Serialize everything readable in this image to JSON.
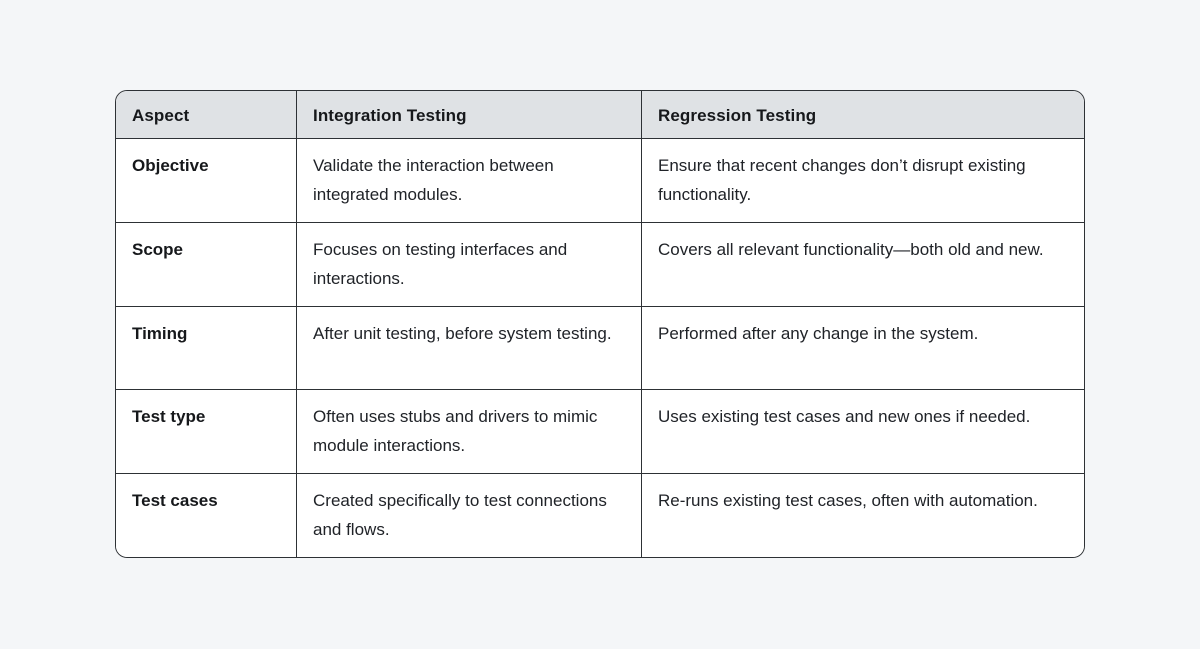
{
  "page": {
    "background_color": "#f4f6f8"
  },
  "colors": {
    "header_background": "#dfe2e5",
    "cell_background": "#ffffff",
    "border": "#2d3135",
    "header_text": "#16181b",
    "body_text": "#202328"
  },
  "table": {
    "columns": [
      "Aspect",
      "Integration Testing",
      "Regression Testing"
    ],
    "rows": [
      {
        "aspect": "Objective",
        "integration": "Validate the interaction between integrated modules.",
        "regression": "Ensure that recent changes don’t disrupt existing functionality."
      },
      {
        "aspect": "Scope",
        "integration": "Focuses on testing interfaces and interactions.",
        "regression": "Covers all relevant functionality—both old and new."
      },
      {
        "aspect": "Timing",
        "integration": "After unit testing, before system testing.",
        "regression": "Performed after any change in the system."
      },
      {
        "aspect": "Test type",
        "integration": "Often uses stubs and drivers to mimic module interactions.",
        "regression": "Uses existing test cases and new ones if needed."
      },
      {
        "aspect": "Test cases",
        "integration": "Created specifically to test connections and flows.",
        "regression": "Re-runs existing test cases, often with automation."
      }
    ]
  }
}
